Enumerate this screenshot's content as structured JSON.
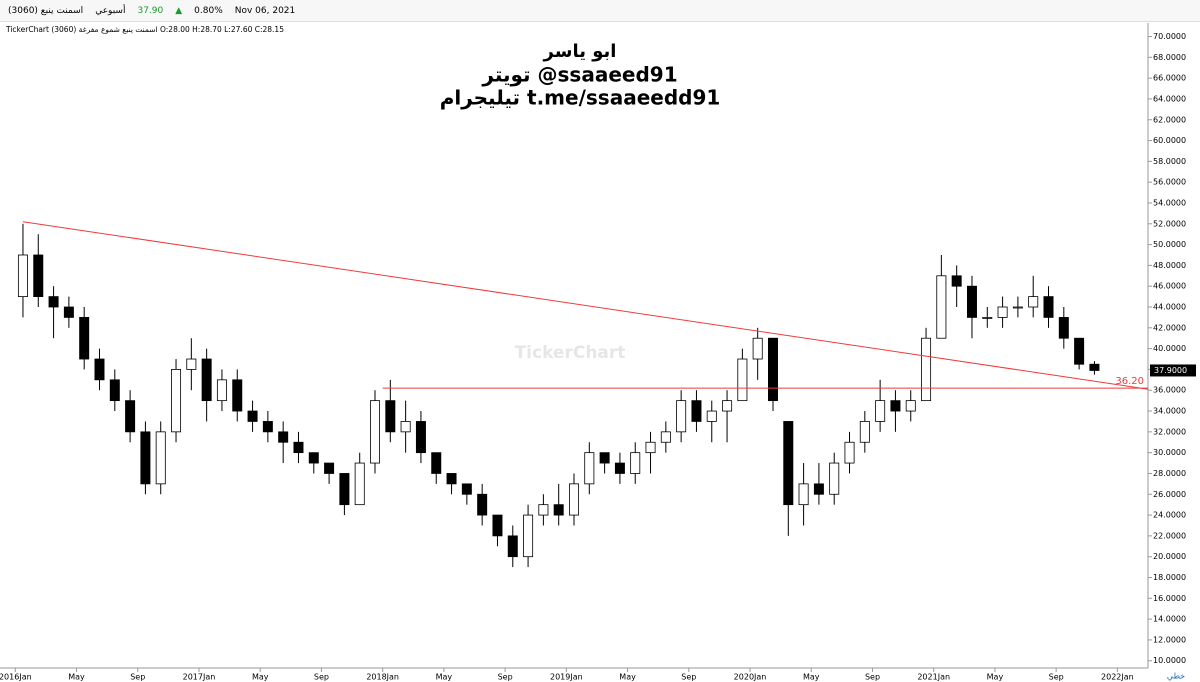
{
  "header": {
    "symbol": "اسمنت ينبع (3060)",
    "period": "أسبوعي",
    "price": "37.90",
    "change": "0.80%",
    "date": "Nov 06, 2021",
    "legend": "TickerChart اسمنت ينبع شموع مفرغة (3060) O:28.00 H:28.70 L:27.60 C:28.15"
  },
  "chart_data": {
    "type": "candlestick",
    "title_lines": [
      "ابو ياسر",
      "تويتر  @ssaaeed91",
      "تيليجرام t.me/ssaaeedd91"
    ],
    "watermark": "TickerChart",
    "scale_mode": "خطي",
    "x": [
      "2016-01",
      "2016-02",
      "2016-03",
      "2016-04",
      "2016-05",
      "2016-06",
      "2016-07",
      "2016-08",
      "2016-09",
      "2016-10",
      "2016-11",
      "2016-12",
      "2017-01",
      "2017-02",
      "2017-03",
      "2017-04",
      "2017-05",
      "2017-06",
      "2017-07",
      "2017-08",
      "2017-09",
      "2017-10",
      "2017-11",
      "2017-12",
      "2018-01",
      "2018-02",
      "2018-03",
      "2018-04",
      "2018-05",
      "2018-06",
      "2018-07",
      "2018-08",
      "2018-09",
      "2018-10",
      "2018-11",
      "2018-12",
      "2019-01",
      "2019-02",
      "2019-03",
      "2019-04",
      "2019-05",
      "2019-06",
      "2019-07",
      "2019-08",
      "2019-09",
      "2019-10",
      "2019-11",
      "2019-12",
      "2020-01",
      "2020-02",
      "2020-03",
      "2020-04",
      "2020-05",
      "2020-06",
      "2020-07",
      "2020-08",
      "2020-09",
      "2020-10",
      "2020-11",
      "2020-12",
      "2021-01",
      "2021-02",
      "2021-03",
      "2021-04",
      "2021-05",
      "2021-06",
      "2021-07",
      "2021-08",
      "2021-09",
      "2021-10",
      "2021-11"
    ],
    "open": [
      45,
      49,
      45,
      44,
      43,
      39,
      37,
      35,
      32,
      27,
      32,
      38,
      39,
      35,
      37,
      34,
      33,
      32,
      31,
      30,
      29,
      28,
      25,
      29,
      35,
      32,
      33,
      30,
      28,
      27,
      26,
      24,
      22,
      20,
      24,
      25,
      24,
      27,
      30,
      29,
      28,
      30,
      31,
      32,
      35,
      33,
      34,
      35,
      39,
      41,
      33,
      25,
      27,
      26,
      29,
      31,
      33,
      35,
      34,
      35,
      41,
      47,
      46,
      43,
      43,
      44,
      44,
      45,
      43,
      41,
      38.5
    ],
    "high": [
      52,
      51,
      46,
      45,
      44,
      40,
      38,
      36,
      33,
      33,
      39,
      41,
      40,
      38,
      38,
      35,
      34,
      33,
      32,
      30,
      29,
      28,
      30,
      36,
      37,
      35,
      34,
      30,
      28,
      27,
      27,
      24,
      23,
      25,
      26,
      27,
      28,
      31,
      30,
      30,
      31,
      32,
      33,
      36,
      36,
      35,
      36,
      40,
      42,
      41,
      33,
      29,
      29,
      30,
      32,
      34,
      37,
      36,
      36,
      42,
      49,
      48,
      47,
      44,
      45,
      45,
      47,
      46,
      44,
      41,
      38.8
    ],
    "low": [
      43,
      44,
      41,
      42,
      38,
      36,
      34,
      31,
      26,
      26,
      31,
      36,
      33,
      34,
      33,
      32,
      31,
      29,
      29,
      28,
      27,
      24,
      25,
      28,
      31,
      30,
      29,
      27,
      26,
      25,
      23,
      21,
      19,
      19,
      23,
      23,
      23,
      26,
      28,
      27,
      27,
      28,
      30,
      31,
      32,
      31,
      31,
      35,
      37,
      34,
      22,
      23,
      25,
      25,
      28,
      30,
      32,
      32,
      33,
      35,
      41,
      44,
      41,
      42,
      42,
      43,
      43,
      42,
      40,
      38,
      37.5
    ],
    "close": [
      49,
      45,
      44,
      43,
      39,
      37,
      35,
      32,
      27,
      32,
      38,
      39,
      35,
      37,
      34,
      33,
      32,
      31,
      30,
      29,
      28,
      25,
      29,
      35,
      32,
      33,
      30,
      28,
      27,
      26,
      24,
      22,
      20,
      24,
      25,
      24,
      27,
      30,
      29,
      28,
      30,
      31,
      32,
      35,
      33,
      34,
      35,
      39,
      41,
      35,
      25,
      27,
      26,
      29,
      31,
      33,
      35,
      34,
      35,
      41,
      47,
      46,
      43,
      43,
      44,
      44,
      45,
      43,
      41,
      38.5,
      37.9
    ],
    "trendline": {
      "start": [
        "2016-01",
        52.2
      ],
      "end": [
        "2022-03",
        36.1
      ],
      "color": "#ef3b3b"
    },
    "support": {
      "start": "2018-01",
      "value": 36.2,
      "label": "36.20",
      "color": "#ef3b3b"
    },
    "last_price": {
      "value": 37.9,
      "label": "37.9000"
    },
    "xlim": [
      "2015-12",
      "2022-03"
    ],
    "xticks": [
      {
        "value": "2016-01",
        "label": "2016Jan"
      },
      {
        "value": "2016-05",
        "label": "May"
      },
      {
        "value": "2016-09",
        "label": "Sep"
      },
      {
        "value": "2017-01",
        "label": "2017Jan"
      },
      {
        "value": "2017-05",
        "label": "May"
      },
      {
        "value": "2017-09",
        "label": "Sep"
      },
      {
        "value": "2018-01",
        "label": "2018Jan"
      },
      {
        "value": "2018-05",
        "label": "May"
      },
      {
        "value": "2018-09",
        "label": "Sep"
      },
      {
        "value": "2019-01",
        "label": "2019Jan"
      },
      {
        "value": "2019-05",
        "label": "May"
      },
      {
        "value": "2019-09",
        "label": "Sep"
      },
      {
        "value": "2020-01",
        "label": "2020Jan"
      },
      {
        "value": "2020-05",
        "label": "May"
      },
      {
        "value": "2020-09",
        "label": "Sep"
      },
      {
        "value": "2021-01",
        "label": "2021Jan"
      },
      {
        "value": "2021-05",
        "label": "May"
      },
      {
        "value": "2021-09",
        "label": "Sep"
      },
      {
        "value": "2022-01",
        "label": "2022Jan"
      }
    ],
    "ylim": [
      9.3,
      71.3
    ],
    "yticks": [
      {
        "value": 10,
        "label": "10.0000"
      },
      {
        "value": 12,
        "label": "12.0000"
      },
      {
        "value": 14,
        "label": "14.0000"
      },
      {
        "value": 16,
        "label": "16.0000"
      },
      {
        "value": 18,
        "label": "18.0000"
      },
      {
        "value": 20,
        "label": "20.0000"
      },
      {
        "value": 22,
        "label": "22.0000"
      },
      {
        "value": 24,
        "label": "24.0000"
      },
      {
        "value": 26,
        "label": "26.0000"
      },
      {
        "value": 28,
        "label": "28.0000"
      },
      {
        "value": 30,
        "label": "30.0000"
      },
      {
        "value": 32,
        "label": "32.0000"
      },
      {
        "value": 34,
        "label": "34.0000"
      },
      {
        "value": 36,
        "label": "36.0000"
      },
      {
        "value": 38,
        "label": "38.0000"
      },
      {
        "value": 40,
        "label": "40.0000"
      },
      {
        "value": 42,
        "label": "42.0000"
      },
      {
        "value": 44,
        "label": "44.0000"
      },
      {
        "value": 46,
        "label": "46.0000"
      },
      {
        "value": 48,
        "label": "48.0000"
      },
      {
        "value": 50,
        "label": "50.0000"
      },
      {
        "value": 52,
        "label": "52.0000"
      },
      {
        "value": 54,
        "label": "54.0000"
      },
      {
        "value": 56,
        "label": "56.0000"
      },
      {
        "value": 58,
        "label": "58.0000"
      },
      {
        "value": 60,
        "label": "60.0000"
      },
      {
        "value": 62,
        "label": "62.0000"
      },
      {
        "value": 64,
        "label": "64.0000"
      },
      {
        "value": 66,
        "label": "66.0000"
      },
      {
        "value": 68,
        "label": "68.0000"
      },
      {
        "value": 70,
        "label": "70.0000"
      }
    ],
    "grid": false,
    "up_color": "#ffffff",
    "down_color": "#000000"
  }
}
